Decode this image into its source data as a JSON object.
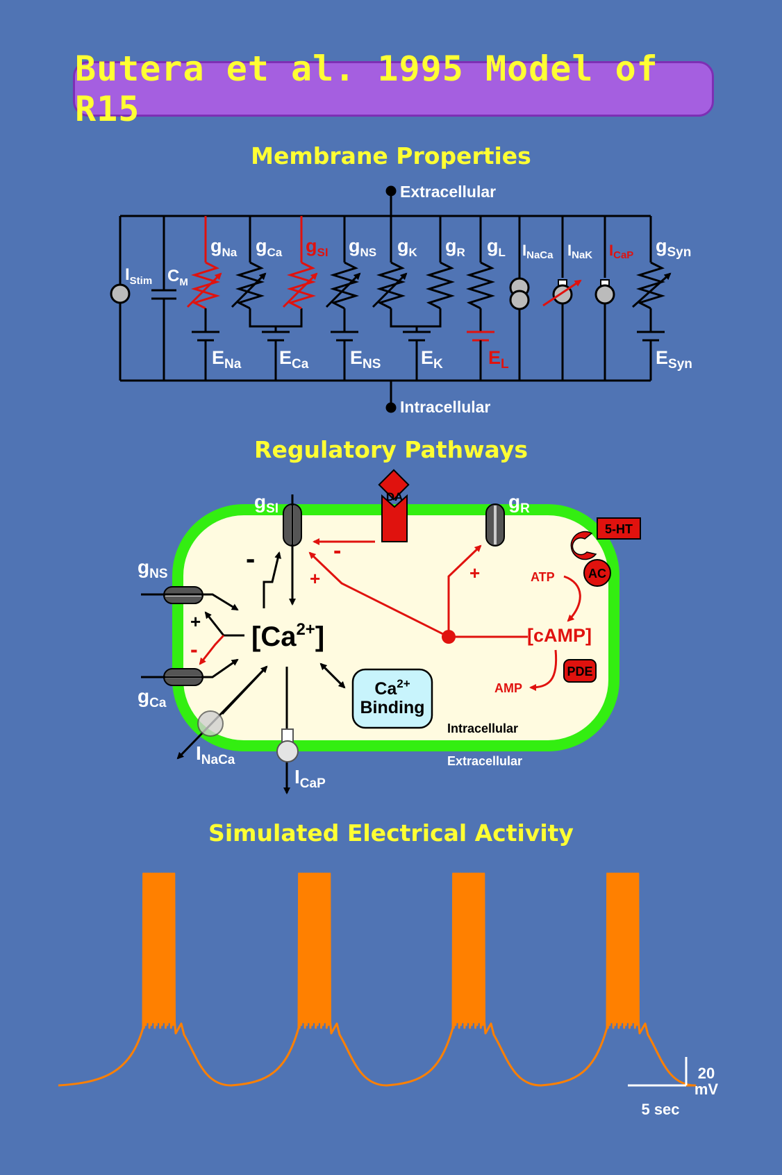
{
  "title": "Butera et al. 1995 Model of R15",
  "sections": {
    "membrane": "Membrane Properties",
    "regulatory": "Regulatory Pathways",
    "activity": "Simulated Electrical Activity"
  },
  "membrane_circuit": {
    "top_node": "Extracellular",
    "bottom_node": "Intracellular",
    "stim": {
      "main": "I",
      "sub": "Stim"
    },
    "cap": {
      "main": "C",
      "sub": "M"
    },
    "conductances": [
      {
        "main": "g",
        "sub": "Na",
        "color": "#e0120e"
      },
      {
        "main": "g",
        "sub": "Ca",
        "color": "#000000"
      },
      {
        "main": "g",
        "sub": "SI",
        "color": "#e0120e"
      },
      {
        "main": "g",
        "sub": "NS",
        "color": "#000000"
      },
      {
        "main": "g",
        "sub": "K",
        "color": "#000000"
      },
      {
        "main": "g",
        "sub": "R",
        "color": "#000000"
      },
      {
        "main": "g",
        "sub": "L",
        "color": "#000000"
      }
    ],
    "pumps": [
      {
        "main": "I",
        "sub": "NaCa"
      },
      {
        "main": "I",
        "sub": "NaK"
      },
      {
        "main": "I",
        "sub": "CaP"
      }
    ],
    "syn": {
      "main": "g",
      "sub": "Syn"
    },
    "reversals": [
      {
        "main": "E",
        "sub": "Na"
      },
      {
        "main": "E",
        "sub": "Ca"
      },
      {
        "main": "E",
        "sub": "NS"
      },
      {
        "main": "E",
        "sub": "K"
      },
      {
        "main": "E",
        "sub": "L"
      },
      {
        "main": "E",
        "sub": "Syn"
      }
    ]
  },
  "regulatory": {
    "g_si": {
      "main": "g",
      "sub": "SI"
    },
    "g_r": {
      "main": "g",
      "sub": "R"
    },
    "g_ns": {
      "main": "g",
      "sub": "NS"
    },
    "g_ca": {
      "main": "g",
      "sub": "Ca"
    },
    "i_naca": {
      "main": "I",
      "sub": "NaCa"
    },
    "i_cap": {
      "main": "I",
      "sub": "CaP"
    },
    "da": "DA",
    "ht": "5-HT",
    "ac": "AC",
    "atp": "ATP",
    "camp": "[cAMP]",
    "pde": "PDE",
    "amp": "AMP",
    "ca_main": "[Ca",
    "ca_sup": "2+",
    "ca_close": "]",
    "binding_top": "Ca",
    "binding_sup": "2+",
    "binding_bottom": "Binding",
    "intracellular": "Intracellular",
    "extracellular": "Extracellular",
    "signs": {
      "plus": "+",
      "minus": "-"
    }
  },
  "scale_bar": {
    "voltage": "20",
    "voltage_unit": "mV",
    "time": "5 sec"
  },
  "colors": {
    "background": "#5074b4",
    "title_fill": "#a55fe0",
    "title_text": "#ffff33",
    "red": "#e0120e",
    "trace": "#ff8000",
    "cell_fill": "#fffbe0",
    "membrane": "#33ee11",
    "binding_fill": "#c8f4fc"
  }
}
